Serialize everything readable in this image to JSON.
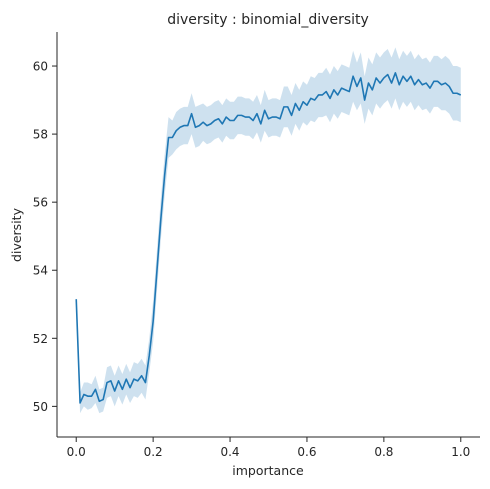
{
  "chart_data": {
    "type": "line",
    "title": "diversity : binomial_diversity",
    "xlabel": "importance",
    "ylabel": "diversity",
    "xlim": [
      -0.05,
      1.05
    ],
    "ylim": [
      49.1,
      61.0
    ],
    "xticks": [
      0.0,
      0.2,
      0.4,
      0.6,
      0.8,
      1.0
    ],
    "xtick_labels": [
      "0.0",
      "0.2",
      "0.4",
      "0.6",
      "0.8",
      "1.0"
    ],
    "yticks": [
      50,
      52,
      54,
      56,
      58,
      60
    ],
    "ytick_labels": [
      "50",
      "52",
      "54",
      "56",
      "58",
      "60"
    ],
    "grid": false,
    "line_color": "#1f77b4",
    "band_color": "#1f77b4",
    "series": [
      {
        "x": [
          0.0,
          0.01,
          0.02,
          0.03,
          0.04,
          0.05,
          0.06,
          0.07,
          0.08,
          0.09,
          0.1,
          0.11,
          0.12,
          0.13,
          0.14,
          0.15,
          0.16,
          0.17,
          0.18,
          0.19,
          0.2,
          0.21,
          0.22,
          0.23,
          0.24,
          0.25,
          0.26,
          0.27,
          0.28,
          0.29,
          0.3,
          0.31,
          0.32,
          0.33,
          0.34,
          0.35,
          0.36,
          0.37,
          0.38,
          0.39,
          0.4,
          0.41,
          0.42,
          0.43,
          0.44,
          0.45,
          0.46,
          0.47,
          0.48,
          0.49,
          0.5,
          0.51,
          0.52,
          0.53,
          0.54,
          0.55,
          0.56,
          0.57,
          0.58,
          0.59,
          0.6,
          0.61,
          0.62,
          0.63,
          0.64,
          0.65,
          0.66,
          0.67,
          0.68,
          0.69,
          0.7,
          0.71,
          0.72,
          0.73,
          0.74,
          0.75,
          0.76,
          0.77,
          0.78,
          0.79,
          0.8,
          0.81,
          0.82,
          0.83,
          0.84,
          0.85,
          0.86,
          0.87,
          0.88,
          0.89,
          0.9,
          0.91,
          0.92,
          0.93,
          0.94,
          0.95,
          0.96,
          0.97,
          0.98,
          0.99,
          1.0
        ],
        "y": [
          53.15,
          50.1,
          50.35,
          50.3,
          50.3,
          50.5,
          50.15,
          50.2,
          50.7,
          50.75,
          50.45,
          50.75,
          50.5,
          50.8,
          50.55,
          50.8,
          50.75,
          50.9,
          50.7,
          51.5,
          52.5,
          54.0,
          55.5,
          56.8,
          57.9,
          57.9,
          58.1,
          58.2,
          58.25,
          58.25,
          58.6,
          58.2,
          58.25,
          58.35,
          58.25,
          58.3,
          58.4,
          58.45,
          58.3,
          58.5,
          58.4,
          58.4,
          58.55,
          58.55,
          58.5,
          58.5,
          58.4,
          58.6,
          58.3,
          58.7,
          58.45,
          58.5,
          58.5,
          58.45,
          58.8,
          58.8,
          58.55,
          58.9,
          58.7,
          58.95,
          58.85,
          59.05,
          59.0,
          59.15,
          59.15,
          59.25,
          59.05,
          59.3,
          59.15,
          59.35,
          59.3,
          59.25,
          59.7,
          59.4,
          59.65,
          59.0,
          59.5,
          59.3,
          59.65,
          59.5,
          59.65,
          59.75,
          59.5,
          59.8,
          59.45,
          59.7,
          59.55,
          59.7,
          59.45,
          59.6,
          59.45,
          59.5,
          59.35,
          59.55,
          59.55,
          59.45,
          59.5,
          59.4,
          59.2,
          59.2,
          59.15
        ],
        "lower": [
          53.1,
          49.8,
          50.0,
          49.9,
          49.95,
          50.1,
          49.8,
          49.85,
          50.25,
          50.3,
          50.0,
          50.3,
          50.05,
          50.35,
          50.1,
          50.3,
          50.25,
          50.4,
          50.2,
          51.0,
          51.9,
          53.4,
          54.9,
          56.2,
          57.3,
          57.4,
          57.55,
          57.65,
          57.7,
          57.7,
          58.0,
          57.6,
          57.65,
          57.8,
          57.7,
          57.75,
          57.85,
          57.9,
          57.75,
          57.95,
          57.85,
          57.85,
          58.0,
          58.0,
          57.95,
          57.95,
          57.85,
          58.05,
          57.75,
          58.1,
          57.9,
          57.95,
          57.95,
          57.9,
          58.2,
          58.2,
          57.95,
          58.3,
          58.1,
          58.35,
          58.25,
          58.4,
          58.35,
          58.5,
          58.5,
          58.55,
          58.35,
          58.6,
          58.45,
          58.65,
          58.6,
          58.55,
          58.95,
          58.7,
          58.9,
          58.3,
          58.75,
          58.55,
          58.9,
          58.75,
          58.9,
          59.0,
          58.75,
          59.05,
          58.7,
          58.95,
          58.8,
          58.95,
          58.7,
          58.85,
          58.7,
          58.75,
          58.6,
          58.8,
          58.8,
          58.7,
          58.7,
          58.6,
          58.4,
          58.4,
          58.35
        ],
        "upper": [
          53.2,
          50.4,
          50.7,
          50.7,
          50.65,
          50.9,
          50.5,
          50.55,
          51.15,
          51.2,
          50.9,
          51.2,
          50.95,
          51.25,
          51.0,
          51.3,
          51.25,
          51.4,
          51.2,
          52.0,
          53.1,
          54.6,
          56.1,
          57.4,
          58.5,
          58.4,
          58.65,
          58.75,
          58.8,
          58.8,
          59.2,
          58.8,
          58.85,
          58.9,
          58.8,
          58.85,
          58.95,
          59.0,
          58.85,
          59.05,
          58.95,
          58.95,
          59.1,
          59.1,
          59.05,
          59.05,
          58.95,
          59.15,
          58.85,
          59.3,
          59.0,
          59.05,
          59.05,
          59.0,
          59.4,
          59.4,
          59.15,
          59.5,
          59.3,
          59.55,
          59.45,
          59.7,
          59.65,
          59.8,
          59.8,
          59.95,
          59.75,
          60.0,
          59.85,
          60.05,
          60.0,
          59.95,
          60.45,
          60.1,
          60.4,
          59.7,
          60.25,
          60.05,
          60.4,
          60.25,
          60.4,
          60.5,
          60.25,
          60.55,
          60.2,
          60.45,
          60.3,
          60.45,
          60.2,
          60.35,
          60.2,
          60.25,
          60.1,
          60.3,
          60.3,
          60.2,
          60.3,
          60.2,
          60.0,
          60.0,
          59.95
        ]
      }
    ]
  }
}
